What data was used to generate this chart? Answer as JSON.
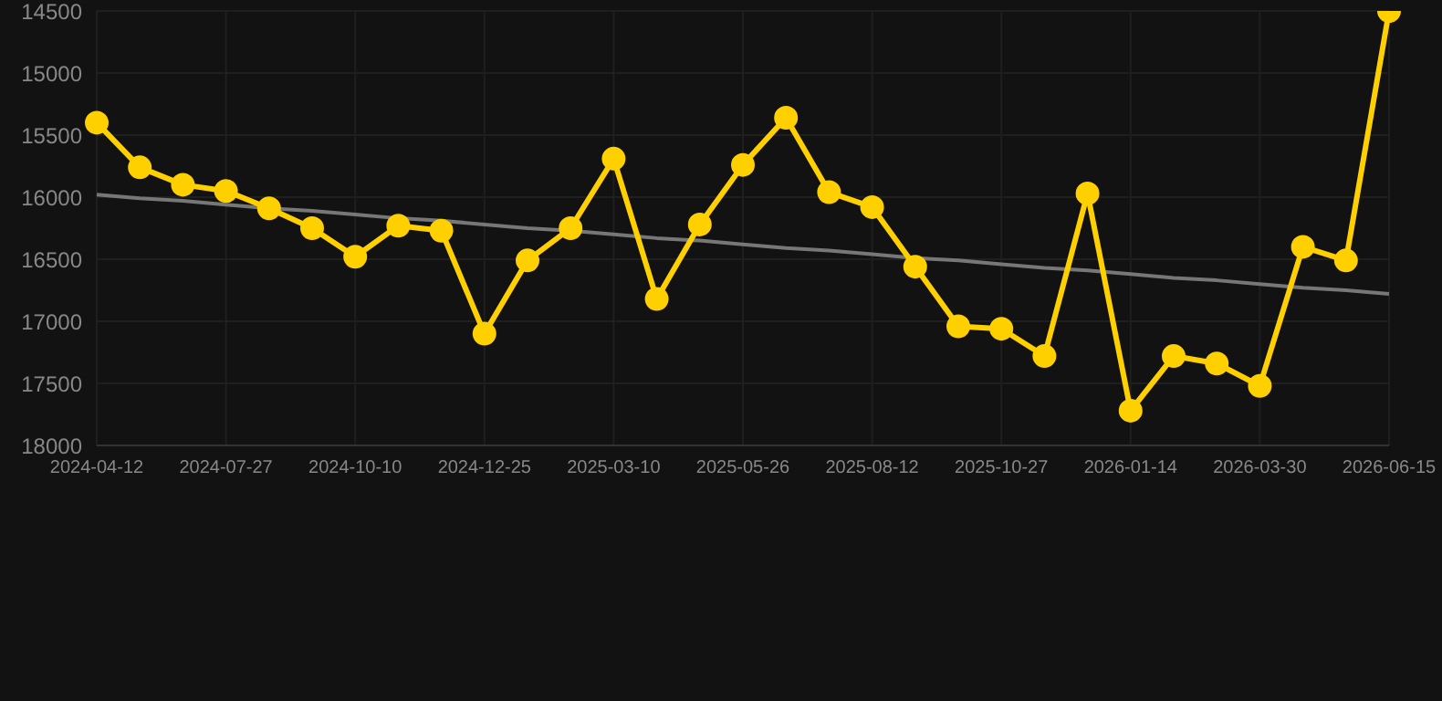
{
  "chart_data": {
    "type": "line",
    "categories": [
      "2024-04-12",
      null,
      null,
      "2024-07-27",
      null,
      null,
      "2024-10-10",
      null,
      null,
      "2024-12-25",
      null,
      null,
      "2025-03-10",
      null,
      null,
      "2025-05-26",
      null,
      null,
      "2025-08-12",
      null,
      null,
      "2025-10-27",
      null,
      null,
      "2026-01-14",
      null,
      null,
      "2026-03-30",
      null,
      null,
      "2026-06-15"
    ],
    "series": [
      {
        "color": "#ffd000",
        "marker": "circle",
        "values": [
          15400,
          15760,
          15900,
          15950,
          16090,
          16250,
          16480,
          16230,
          16270,
          17100,
          16510,
          16250,
          15690,
          16820,
          16220,
          15740,
          15360,
          15960,
          16080,
          16560,
          17040,
          17060,
          17280,
          15970,
          17720,
          17280,
          17340,
          17520,
          16400,
          16510,
          14500
        ]
      },
      {
        "color": "#777777",
        "marker": "none",
        "values": [
          15980,
          16010,
          16030,
          16060,
          16090,
          16110,
          16140,
          16170,
          16190,
          16220,
          16250,
          16270,
          16300,
          16330,
          16350,
          16380,
          16410,
          16430,
          16460,
          16490,
          16510,
          16540,
          16570,
          16590,
          16620,
          16650,
          16670,
          16700,
          16730,
          16750,
          16780
        ]
      }
    ],
    "ylim": [
      18000,
      14500
    ],
    "yticks": [
      14500,
      15000,
      15500,
      16000,
      16500,
      17000,
      17500,
      18000
    ],
    "grid": true,
    "legend": false
  }
}
